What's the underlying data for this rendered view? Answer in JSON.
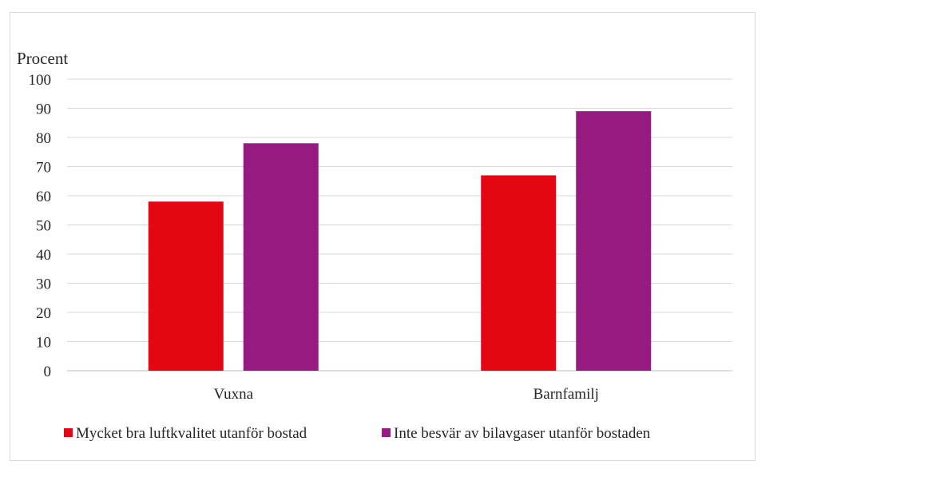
{
  "chart_data": {
    "type": "bar",
    "ylabel": "Procent",
    "categories": [
      "Vuxna",
      "Barnfamilj"
    ],
    "ylim": [
      0,
      100
    ],
    "yticks": [
      0,
      10,
      20,
      30,
      40,
      50,
      60,
      70,
      80,
      90,
      100
    ],
    "grid": true,
    "legend_position": "bottom",
    "series": [
      {
        "name": "Mycket bra luftkvalitet utanför bostad",
        "values": [
          58,
          67
        ],
        "color": "#e30613"
      },
      {
        "name": "Inte besvär av bilavgaser utanför bostaden",
        "values": [
          78,
          89
        ],
        "color": "#951b81"
      }
    ]
  }
}
